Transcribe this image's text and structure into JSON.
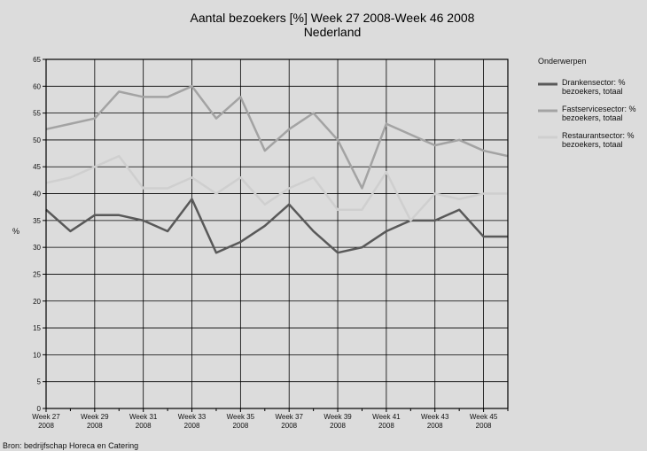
{
  "chart_data": {
    "type": "line",
    "title_line1": "Aantal bezoekers [%] Week 27 2008-Week 46 2008",
    "title_line2": "Nederland",
    "ylabel": "%",
    "ylim": [
      0,
      65
    ],
    "yticks": [
      0,
      5,
      10,
      15,
      20,
      25,
      30,
      35,
      40,
      45,
      50,
      55,
      60,
      65
    ],
    "grid": true,
    "legend_position": "right",
    "legend_title": "Onderwerpen",
    "x": [
      27,
      28,
      29,
      30,
      31,
      32,
      33,
      34,
      35,
      36,
      37,
      38,
      39,
      40,
      41,
      42,
      43,
      44,
      45,
      46
    ],
    "x_labels": [
      {
        "week": "Week 27",
        "year": "2008"
      },
      {
        "week": "Week 29",
        "year": "2008"
      },
      {
        "week": "Week 31",
        "year": "2008"
      },
      {
        "week": "Week 33",
        "year": "2008"
      },
      {
        "week": "Week 35",
        "year": "2008"
      },
      {
        "week": "Week 37",
        "year": "2008"
      },
      {
        "week": "Week 39",
        "year": "2008"
      },
      {
        "week": "Week 41",
        "year": "2008"
      },
      {
        "week": "Week 43",
        "year": "2008"
      },
      {
        "week": "Week 45",
        "year": "2008"
      }
    ],
    "series": [
      {
        "name_line1": "Drankensector: %",
        "name_line2": "bezoekers, totaal",
        "color": "#595959",
        "values": [
          37,
          33,
          36,
          36,
          35,
          33,
          39,
          29,
          31,
          34,
          38,
          33,
          29,
          30,
          33,
          35,
          35,
          37,
          32,
          32
        ]
      },
      {
        "name_line1": "Fastservicesector: %",
        "name_line2": "bezoekers, totaal",
        "color": "#a3a3a3",
        "values": [
          52,
          53,
          54,
          59,
          58,
          58,
          60,
          54,
          58,
          48,
          52,
          55,
          50,
          41,
          53,
          51,
          49,
          50,
          48,
          47
        ]
      },
      {
        "name_line1": "Restaurantsector: %",
        "name_line2": "bezoekers, totaal",
        "color": "#cfcfcf",
        "values": [
          42,
          43,
          45,
          47,
          41,
          41,
          43,
          40,
          43,
          38,
          41,
          43,
          37,
          37,
          44,
          35,
          40,
          39,
          40,
          40
        ]
      }
    ],
    "source": "Bron: bedrijfschap Horeca en Catering"
  }
}
